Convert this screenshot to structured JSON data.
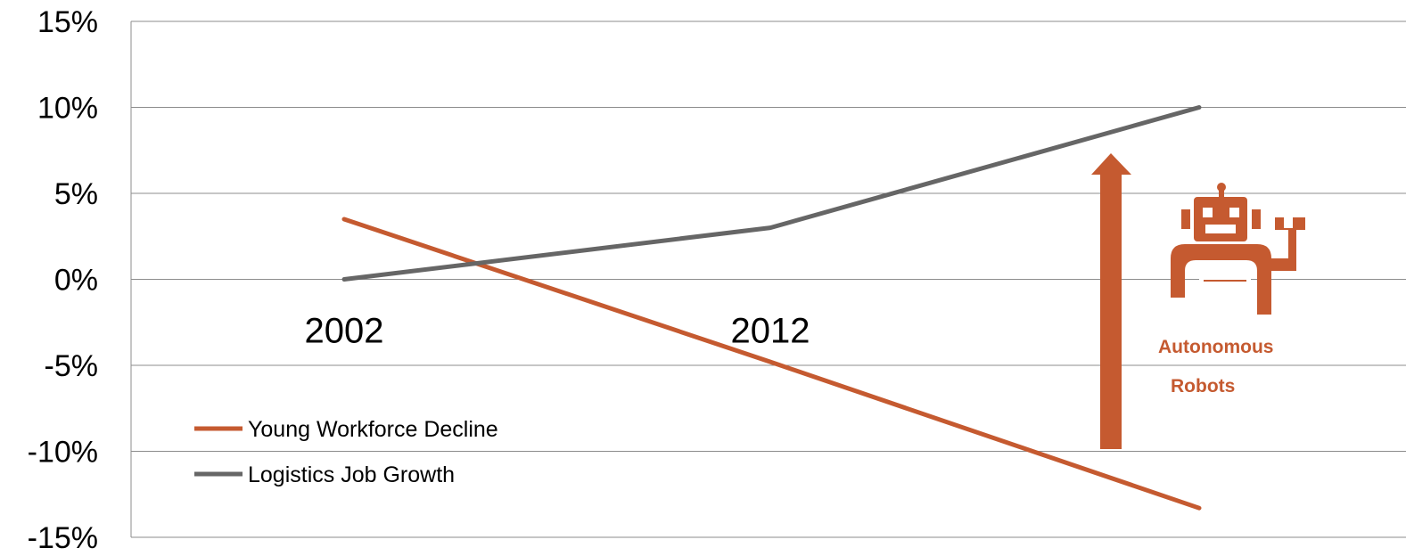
{
  "chart_data": {
    "type": "line",
    "categories": [
      "2002",
      "2012",
      ""
    ],
    "series": [
      {
        "name": "Young Workforce Decline",
        "values": [
          3.5,
          -4.8,
          -13.3
        ],
        "color": "#c55a30"
      },
      {
        "name": "Logistics Job Growth",
        "values": [
          0,
          3,
          10
        ],
        "color": "#666666"
      }
    ],
    "ylim": [
      -15,
      15
    ],
    "yticks": [
      "15%",
      "10%",
      "5%",
      "0%",
      "-5%",
      "-10%",
      "-15%"
    ],
    "ytick_values": [
      15,
      10,
      5,
      0,
      -5,
      -10,
      -15
    ],
    "grid": true,
    "legend": "bottom-left",
    "annotation": {
      "lines": [
        "Autonomous",
        "Robots"
      ],
      "icon": "robot-icon",
      "arrow": "up-arrow",
      "color": "#c55a30"
    }
  }
}
